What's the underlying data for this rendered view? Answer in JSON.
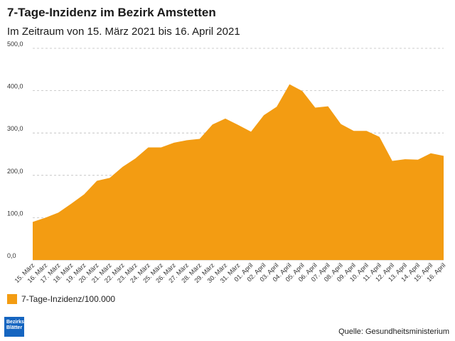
{
  "chart_data": {
    "type": "area",
    "title": "7-Tage-Inzidenz im Bezirk Amstetten",
    "subtitle": "Im Zeitraum von 15. März 2021 bis 16. April 2021",
    "x": [
      "15. März",
      "16. März",
      "17. März",
      "18. März",
      "19. März",
      "20. März",
      "21. März",
      "22. März",
      "23. März",
      "24. März",
      "25. März",
      "26. März",
      "27. März",
      "28. März",
      "29. März",
      "30. März",
      "31. März",
      "01. April",
      "02. April",
      "03. April",
      "04. April",
      "05. April",
      "06. April",
      "07. April",
      "08. April",
      "09. April",
      "10. April",
      "11. April",
      "12. April",
      "13. April",
      "14. April",
      "15. April",
      "16. April"
    ],
    "series": [
      {
        "name": "7-Tage-Inzidenz/100.000",
        "color": "#f39c12",
        "values": [
          90,
          100,
          112,
          133,
          155,
          187,
          194,
          220,
          240,
          266,
          266,
          277,
          283,
          286,
          320,
          334,
          319,
          303,
          342,
          362,
          415,
          399,
          360,
          363,
          321,
          305,
          305,
          291,
          234,
          238,
          237,
          252,
          246
        ]
      }
    ],
    "y_ticks": [
      "0,0",
      "100,0",
      "200,0",
      "300,0",
      "400,0",
      "500,0"
    ],
    "ylim": [
      0,
      500
    ],
    "grid": true,
    "legend_position": "bottom-left"
  },
  "source": "Quelle: Gesundheitsministerium",
  "logo": {
    "line1": "Bezirks",
    "line2": "Blätter"
  }
}
